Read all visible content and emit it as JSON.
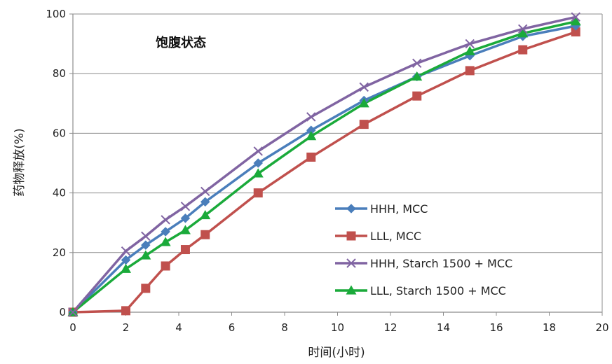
{
  "chart_data": {
    "type": "line",
    "title": "",
    "annotation": "饱腹状态",
    "xlabel": "时间(小时)",
    "ylabel": "药物释放(%)",
    "xlim": [
      0,
      20
    ],
    "ylim": [
      0,
      100
    ],
    "xticks": [
      0,
      2,
      4,
      6,
      8,
      10,
      12,
      14,
      16,
      18,
      20
    ],
    "yticks": [
      0,
      20,
      40,
      60,
      80,
      100
    ],
    "grid": "horizontal",
    "legend_position": "bottom-right",
    "series": [
      {
        "name": "HHH, MCC",
        "color": "#4a7ebb",
        "marker": "diamond",
        "x": [
          0,
          2,
          2.75,
          3.5,
          4.25,
          5,
          7,
          9,
          11,
          13,
          15,
          17,
          19
        ],
        "y": [
          0,
          17.5,
          22.5,
          27,
          31.5,
          37,
          50,
          61,
          71,
          79,
          86,
          92.5,
          96
        ]
      },
      {
        "name": "LLL, MCC",
        "color": "#c0504d",
        "marker": "square",
        "x": [
          0,
          2,
          2.75,
          3.5,
          4.25,
          5,
          7,
          9,
          11,
          13,
          15,
          17,
          19
        ],
        "y": [
          0,
          0.5,
          8,
          15.5,
          21,
          26,
          40,
          52,
          63,
          72.5,
          81,
          88,
          94
        ]
      },
      {
        "name": "HHH, Starch 1500 + MCC",
        "color": "#8064a2",
        "marker": "x",
        "x": [
          0,
          2,
          2.75,
          3.5,
          4.25,
          5,
          7,
          9,
          11,
          13,
          15,
          17,
          19
        ],
        "y": [
          0,
          20.5,
          25.5,
          31,
          35.5,
          40.5,
          54,
          65.5,
          75.5,
          83.5,
          90,
          95,
          99
        ]
      },
      {
        "name": "LLL, Starch 1500 + MCC",
        "color": "#1aaa3a",
        "marker": "triangle",
        "x": [
          0,
          2,
          2.75,
          3.5,
          4.25,
          5,
          7,
          9,
          11,
          13,
          15,
          17,
          19
        ],
        "y": [
          0,
          14.5,
          19,
          23.5,
          27.5,
          32.5,
          46.5,
          59,
          70,
          79,
          87.5,
          93.5,
          97.5
        ]
      }
    ]
  }
}
